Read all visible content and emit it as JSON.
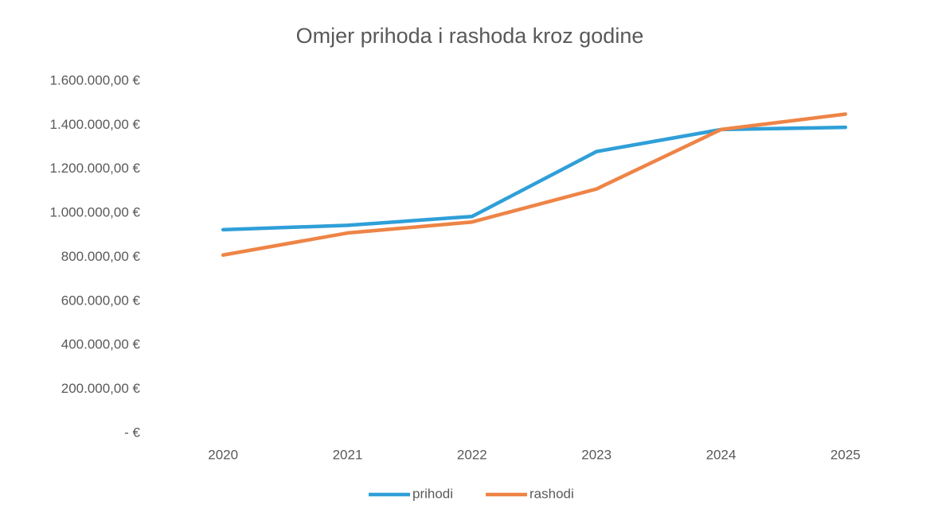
{
  "chart_data": {
    "type": "line",
    "title": "Omjer prihoda i rashoda kroz godine",
    "categories": [
      "2020",
      "2021",
      "2022",
      "2023",
      "2024",
      "2025"
    ],
    "series": [
      {
        "name": "prihodi",
        "color": "#2f9fd8",
        "values": [
          925000,
          945000,
          985000,
          1280000,
          1380000,
          1390000
        ]
      },
      {
        "name": "rashodi",
        "color": "#ee8446",
        "values": [
          810000,
          910000,
          960000,
          1110000,
          1380000,
          1450000
        ]
      }
    ],
    "ylim": [
      0,
      1600000
    ],
    "yticks": [
      {
        "value": 0,
        "label": "-   €"
      },
      {
        "value": 200000,
        "label": "200.000,00 €"
      },
      {
        "value": 400000,
        "label": "400.000,00 €"
      },
      {
        "value": 600000,
        "label": "600.000,00 €"
      },
      {
        "value": 800000,
        "label": "800.000,00 €"
      },
      {
        "value": 1000000,
        "label": "1.000.000,00 €"
      },
      {
        "value": 1200000,
        "label": "1.200.000,00 €"
      },
      {
        "value": 1400000,
        "label": "1.400.000,00 €"
      },
      {
        "value": 1600000,
        "label": "1.600.000,00 €"
      }
    ],
    "grid": false,
    "legend": "bottom"
  }
}
